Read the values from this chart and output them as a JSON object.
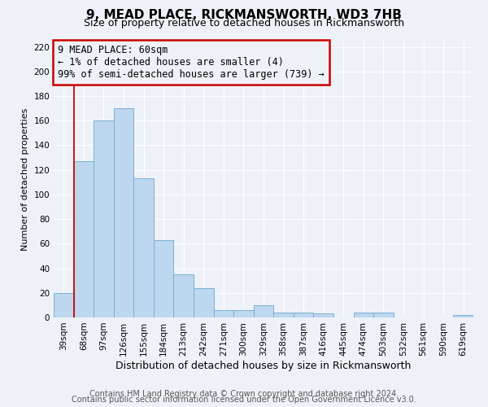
{
  "title": "9, MEAD PLACE, RICKMANSWORTH, WD3 7HB",
  "subtitle": "Size of property relative to detached houses in Rickmansworth",
  "xlabel": "Distribution of detached houses by size in Rickmansworth",
  "ylabel": "Number of detached properties",
  "categories": [
    "39sqm",
    "68sqm",
    "97sqm",
    "126sqm",
    "155sqm",
    "184sqm",
    "213sqm",
    "242sqm",
    "271sqm",
    "300sqm",
    "329sqm",
    "358sqm",
    "387sqm",
    "416sqm",
    "445sqm",
    "474sqm",
    "503sqm",
    "532sqm",
    "561sqm",
    "590sqm",
    "619sqm"
  ],
  "values": [
    20,
    127,
    160,
    170,
    113,
    63,
    35,
    24,
    6,
    6,
    10,
    4,
    4,
    3,
    0,
    4,
    4,
    0,
    0,
    0,
    2
  ],
  "bar_color": "#bdd7ee",
  "bar_edge_color": "#7ab0d4",
  "highlight_color": "#cc0000",
  "ylim": [
    0,
    225
  ],
  "yticks": [
    0,
    20,
    40,
    60,
    80,
    100,
    120,
    140,
    160,
    180,
    200,
    220
  ],
  "annotation_line1": "9 MEAD PLACE: 60sqm",
  "annotation_line2": "← 1% of detached houses are smaller (4)",
  "annotation_line3": "99% of semi-detached houses are larger (739) →",
  "annotation_box_color": "#cc0000",
  "footer_line1": "Contains HM Land Registry data © Crown copyright and database right 2024.",
  "footer_line2": "Contains public sector information licensed under the Open Government Licence v3.0.",
  "background_color": "#eef2f8",
  "grid_color": "#ffffff",
  "title_fontsize": 11,
  "subtitle_fontsize": 9,
  "xlabel_fontsize": 9,
  "ylabel_fontsize": 8,
  "tick_fontsize": 7.5,
  "annotation_fontsize": 8.5,
  "footer_fontsize": 7
}
